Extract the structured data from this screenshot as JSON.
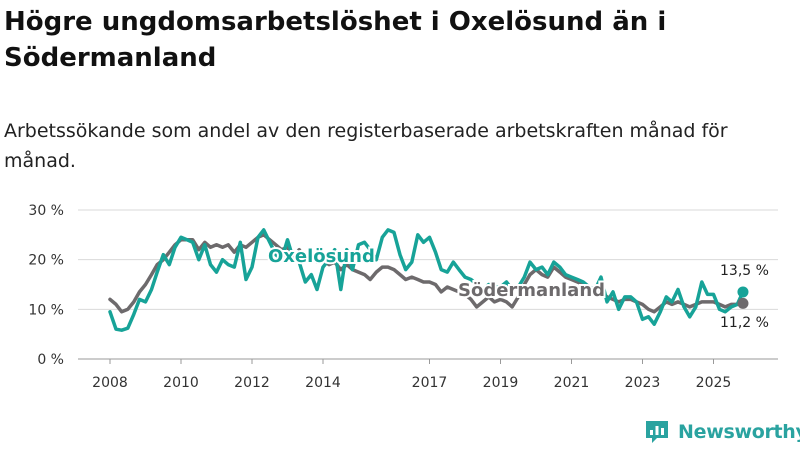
{
  "title": "Högre ungdomsarbetslöshet i Oxelösund än i Södermanland",
  "subtitle": "Arbetssökande som andel av den registerbaserade arbetskraften månad för månad.",
  "brand": "Newsworthy",
  "colors": {
    "oxelosund": "#17a398",
    "sodermanland": "#6d6a6c",
    "grid": "#d9d9d9",
    "brand": "#2aa3a0"
  },
  "chart_data": {
    "type": "line",
    "ylim": [
      0,
      30
    ],
    "yticks": [
      0,
      10,
      20,
      30
    ],
    "ytick_labels": [
      "0 %",
      "10 %",
      "20 %",
      "30 %"
    ],
    "xlim": [
      2008,
      2026.5
    ],
    "xticks": [
      2008,
      2010,
      2012,
      2014,
      2017,
      2019,
      2021,
      2023,
      2025
    ],
    "xtick_labels": [
      "2008",
      "2010",
      "2012",
      "2014",
      "2017",
      "2019",
      "2021",
      "2023",
      "2025"
    ],
    "series": [
      {
        "name": "Oxelösund",
        "color": "#17a398",
        "label": "Oxelösund",
        "end_label": "13,5 %",
        "points": [
          [
            2008.0,
            9.5
          ],
          [
            2008.17,
            6.0
          ],
          [
            2008.33,
            5.8
          ],
          [
            2008.5,
            6.2
          ],
          [
            2008.67,
            9.0
          ],
          [
            2008.83,
            12.0
          ],
          [
            2009.0,
            11.5
          ],
          [
            2009.17,
            14.0
          ],
          [
            2009.33,
            17.5
          ],
          [
            2009.5,
            21.0
          ],
          [
            2009.67,
            19.0
          ],
          [
            2009.83,
            22.5
          ],
          [
            2010.0,
            24.5
          ],
          [
            2010.17,
            24.0
          ],
          [
            2010.33,
            23.5
          ],
          [
            2010.5,
            20.0
          ],
          [
            2010.67,
            23.0
          ],
          [
            2010.83,
            19.0
          ],
          [
            2011.0,
            17.5
          ],
          [
            2011.17,
            20.0
          ],
          [
            2011.33,
            19.0
          ],
          [
            2011.5,
            18.5
          ],
          [
            2011.67,
            23.5
          ],
          [
            2011.83,
            16.0
          ],
          [
            2012.0,
            18.5
          ],
          [
            2012.17,
            24.5
          ],
          [
            2012.33,
            26.0
          ],
          [
            2012.5,
            23.5
          ],
          [
            2012.67,
            21.0
          ],
          [
            2012.83,
            20.0
          ],
          [
            2013.0,
            24.0
          ],
          [
            2013.17,
            20.0
          ],
          [
            2013.33,
            19.5
          ],
          [
            2013.5,
            15.5
          ],
          [
            2013.67,
            17.0
          ],
          [
            2013.83,
            14.0
          ],
          [
            2014.0,
            18.5
          ],
          [
            2014.17,
            20.0
          ],
          [
            2014.33,
            22.0
          ],
          [
            2014.5,
            14.0
          ],
          [
            2014.67,
            22.0
          ],
          [
            2014.83,
            18.0
          ],
          [
            2015.0,
            23.0
          ],
          [
            2015.17,
            23.5
          ],
          [
            2015.33,
            22.0
          ],
          [
            2015.5,
            20.0
          ],
          [
            2015.67,
            24.5
          ],
          [
            2015.83,
            26.0
          ],
          [
            2016.0,
            25.5
          ],
          [
            2016.17,
            21.0
          ],
          [
            2016.33,
            18.0
          ],
          [
            2016.5,
            19.5
          ],
          [
            2016.67,
            25.0
          ],
          [
            2016.83,
            23.5
          ],
          [
            2017.0,
            24.5
          ],
          [
            2017.17,
            21.5
          ],
          [
            2017.33,
            18.0
          ],
          [
            2017.5,
            17.5
          ],
          [
            2017.67,
            19.5
          ],
          [
            2017.83,
            18.0
          ],
          [
            2018.0,
            16.5
          ],
          [
            2018.17,
            16.0
          ],
          [
            2018.33,
            15.0
          ],
          [
            2018.5,
            14.0
          ],
          [
            2018.67,
            15.0
          ],
          [
            2018.83,
            14.5
          ],
          [
            2019.0,
            14.5
          ],
          [
            2019.17,
            15.5
          ],
          [
            2019.33,
            14.0
          ],
          [
            2019.5,
            14.5
          ],
          [
            2019.67,
            16.5
          ],
          [
            2019.83,
            19.5
          ],
          [
            2020.0,
            18.0
          ],
          [
            2020.17,
            18.5
          ],
          [
            2020.33,
            17.0
          ],
          [
            2020.5,
            19.5
          ],
          [
            2020.67,
            18.5
          ],
          [
            2020.83,
            17.0
          ],
          [
            2021.0,
            16.5
          ],
          [
            2021.17,
            16.0
          ],
          [
            2021.33,
            15.5
          ],
          [
            2021.5,
            14.5
          ],
          [
            2021.67,
            14.0
          ],
          [
            2021.83,
            16.5
          ],
          [
            2022.0,
            11.5
          ],
          [
            2022.17,
            13.5
          ],
          [
            2022.33,
            10.0
          ],
          [
            2022.5,
            12.5
          ],
          [
            2022.67,
            12.5
          ],
          [
            2022.83,
            11.5
          ],
          [
            2023.0,
            8.0
          ],
          [
            2023.17,
            8.5
          ],
          [
            2023.33,
            7.0
          ],
          [
            2023.5,
            9.5
          ],
          [
            2023.67,
            12.5
          ],
          [
            2023.83,
            11.5
          ],
          [
            2024.0,
            14.0
          ],
          [
            2024.17,
            10.5
          ],
          [
            2024.33,
            8.5
          ],
          [
            2024.5,
            10.5
          ],
          [
            2024.67,
            15.5
          ],
          [
            2024.83,
            13.0
          ],
          [
            2025.0,
            13.0
          ],
          [
            2025.17,
            10.0
          ],
          [
            2025.33,
            9.5
          ],
          [
            2025.5,
            10.5
          ],
          [
            2025.67,
            11.0
          ],
          [
            2025.83,
            13.5
          ]
        ]
      },
      {
        "name": "Södermanland",
        "color": "#6d6a6c",
        "label": "Södermanland",
        "end_label": "11,2 %",
        "points": [
          [
            2008.0,
            12.0
          ],
          [
            2008.17,
            11.0
          ],
          [
            2008.33,
            9.5
          ],
          [
            2008.5,
            10.0
          ],
          [
            2008.67,
            11.5
          ],
          [
            2008.83,
            13.5
          ],
          [
            2009.0,
            15.0
          ],
          [
            2009.17,
            17.0
          ],
          [
            2009.33,
            19.0
          ],
          [
            2009.5,
            20.0
          ],
          [
            2009.67,
            21.5
          ],
          [
            2009.83,
            23.0
          ],
          [
            2010.0,
            24.0
          ],
          [
            2010.17,
            24.0
          ],
          [
            2010.33,
            24.0
          ],
          [
            2010.5,
            22.0
          ],
          [
            2010.67,
            23.5
          ],
          [
            2010.83,
            22.5
          ],
          [
            2011.0,
            23.0
          ],
          [
            2011.17,
            22.5
          ],
          [
            2011.33,
            23.0
          ],
          [
            2011.5,
            21.5
          ],
          [
            2011.67,
            23.0
          ],
          [
            2011.83,
            22.5
          ],
          [
            2012.0,
            23.5
          ],
          [
            2012.17,
            24.5
          ],
          [
            2012.33,
            25.0
          ],
          [
            2012.5,
            24.0
          ],
          [
            2012.67,
            23.0
          ],
          [
            2012.83,
            22.0
          ],
          [
            2013.0,
            22.5
          ],
          [
            2013.17,
            20.5
          ],
          [
            2013.33,
            22.0
          ],
          [
            2013.5,
            20.0
          ],
          [
            2013.67,
            21.0
          ],
          [
            2013.83,
            19.5
          ],
          [
            2014.0,
            20.0
          ],
          [
            2014.17,
            19.0
          ],
          [
            2014.33,
            19.5
          ],
          [
            2014.5,
            18.0
          ],
          [
            2014.67,
            19.0
          ],
          [
            2014.83,
            18.0
          ],
          [
            2015.0,
            17.5
          ],
          [
            2015.17,
            17.0
          ],
          [
            2015.33,
            16.0
          ],
          [
            2015.5,
            17.5
          ],
          [
            2015.67,
            18.5
          ],
          [
            2015.83,
            18.5
          ],
          [
            2016.0,
            18.0
          ],
          [
            2016.17,
            17.0
          ],
          [
            2016.33,
            16.0
          ],
          [
            2016.5,
            16.5
          ],
          [
            2016.67,
            16.0
          ],
          [
            2016.83,
            15.5
          ],
          [
            2017.0,
            15.5
          ],
          [
            2017.17,
            15.0
          ],
          [
            2017.33,
            13.5
          ],
          [
            2017.5,
            14.5
          ],
          [
            2017.67,
            14.0
          ],
          [
            2017.83,
            13.5
          ],
          [
            2018.0,
            13.0
          ],
          [
            2018.17,
            12.0
          ],
          [
            2018.33,
            10.5
          ],
          [
            2018.5,
            11.5
          ],
          [
            2018.67,
            12.5
          ],
          [
            2018.83,
            11.5
          ],
          [
            2019.0,
            12.0
          ],
          [
            2019.17,
            11.5
          ],
          [
            2019.33,
            10.5
          ],
          [
            2019.5,
            12.5
          ],
          [
            2019.67,
            15.0
          ],
          [
            2019.83,
            17.0
          ],
          [
            2020.0,
            18.0
          ],
          [
            2020.17,
            17.0
          ],
          [
            2020.33,
            16.5
          ],
          [
            2020.5,
            18.5
          ],
          [
            2020.67,
            17.5
          ],
          [
            2020.83,
            16.5
          ],
          [
            2021.0,
            16.0
          ],
          [
            2021.17,
            15.5
          ],
          [
            2021.33,
            15.0
          ],
          [
            2021.5,
            14.5
          ],
          [
            2021.67,
            14.0
          ],
          [
            2021.83,
            13.5
          ],
          [
            2022.0,
            12.5
          ],
          [
            2022.17,
            12.0
          ],
          [
            2022.33,
            11.5
          ],
          [
            2022.5,
            12.0
          ],
          [
            2022.67,
            12.0
          ],
          [
            2022.83,
            11.5
          ],
          [
            2023.0,
            11.0
          ],
          [
            2023.17,
            10.0
          ],
          [
            2023.33,
            9.5
          ],
          [
            2023.5,
            10.5
          ],
          [
            2023.67,
            11.5
          ],
          [
            2023.83,
            11.0
          ],
          [
            2024.0,
            11.5
          ],
          [
            2024.17,
            11.0
          ],
          [
            2024.33,
            10.5
          ],
          [
            2024.5,
            11.0
          ],
          [
            2024.67,
            11.5
          ],
          [
            2024.83,
            11.5
          ],
          [
            2025.0,
            11.5
          ],
          [
            2025.17,
            11.0
          ],
          [
            2025.33,
            10.5
          ],
          [
            2025.5,
            11.0
          ],
          [
            2025.67,
            11.0
          ],
          [
            2025.83,
            11.2
          ]
        ]
      }
    ]
  }
}
